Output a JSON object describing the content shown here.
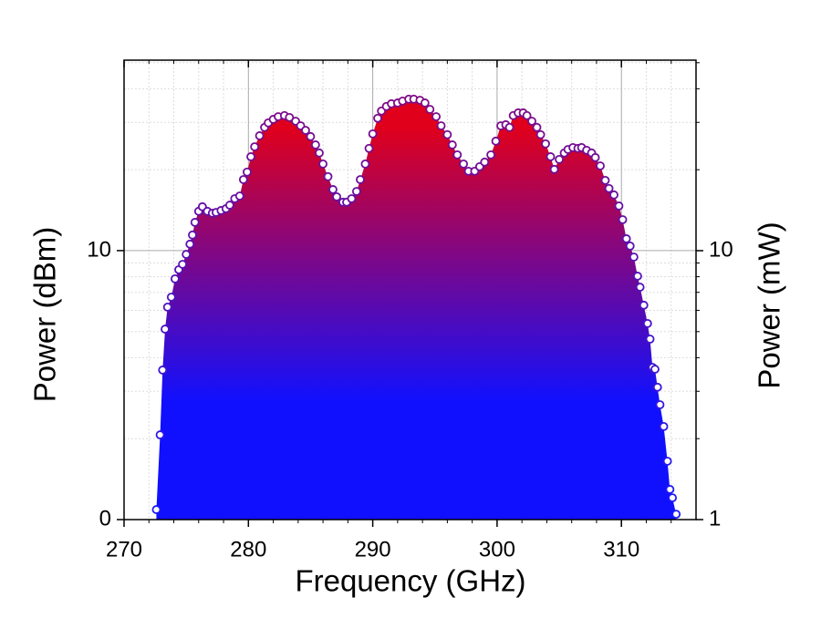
{
  "chart_data": {
    "type": "scatter-area",
    "x_label": "Frequency (GHz)",
    "y_label": "Power (dBm)",
    "y2_label": "Power (mW)",
    "xlim": [
      270,
      316
    ],
    "xticks": [
      270,
      280,
      290,
      300,
      310
    ],
    "xminorticks": [
      272,
      274,
      276,
      278,
      282,
      284,
      286,
      288,
      292,
      294,
      296,
      298,
      302,
      304,
      306,
      308,
      312,
      314
    ],
    "ylim": [
      0,
      17.08
    ],
    "yticks": [
      0,
      10
    ],
    "y2lim": [
      1,
      51.1
    ],
    "y2log": true,
    "y2ticks": [
      1,
      10
    ],
    "y2minorticks": [
      2,
      3,
      4,
      5,
      6,
      7,
      8,
      9,
      20,
      30,
      40,
      50
    ],
    "grid": true,
    "fill_gradient": [
      "#1010ff",
      "#e0001c"
    ],
    "marker_edge_colors": [
      "#1a1aff",
      "#8a0a7a"
    ],
    "series": [
      {
        "x": [
          272.6,
          272.9,
          273.1,
          273.3,
          273.5,
          273.8,
          274.1,
          274.4,
          274.7,
          275.0,
          275.3,
          275.5,
          275.7,
          276.0,
          276.3,
          276.7,
          277.1,
          277.4,
          277.8,
          278.2,
          278.5,
          278.9,
          279.3,
          279.6,
          279.9,
          280.2,
          280.5,
          280.9,
          281.3,
          281.6,
          282.0,
          282.4,
          282.9,
          283.3,
          283.8,
          284.2,
          284.6,
          285.0,
          285.4,
          285.7,
          286.0,
          286.4,
          286.8,
          287.1,
          287.6,
          287.9,
          288.3,
          288.7,
          289.0,
          289.4,
          289.7,
          290.0,
          290.4,
          290.7,
          291.1,
          291.5,
          292.0,
          292.4,
          292.9,
          293.3,
          293.8,
          294.2,
          294.6,
          295.1,
          295.5,
          296.0,
          296.4,
          296.8,
          297.3,
          297.7,
          298.2,
          298.6,
          299.0,
          299.5,
          299.9,
          300.3,
          300.7,
          301.0,
          301.3,
          301.7,
          302.1,
          302.4,
          302.8,
          303.2,
          303.5,
          303.9,
          304.3,
          304.6,
          305.0,
          305.4,
          305.7,
          306.1,
          306.5,
          306.8,
          307.2,
          307.6,
          307.9,
          308.3,
          308.7,
          309.0,
          309.4,
          309.8,
          310.1,
          310.4,
          310.7,
          311.0,
          311.3,
          311.5,
          311.8,
          312.1,
          312.3,
          312.5,
          312.7,
          312.9,
          313.1,
          313.4,
          313.7,
          313.9,
          314.1,
          314.4
        ],
        "values": [
          0.37,
          3.15,
          5.56,
          7.08,
          7.9,
          8.27,
          8.95,
          9.29,
          9.49,
          9.86,
          10.24,
          10.58,
          11.05,
          11.46,
          11.63,
          11.46,
          11.39,
          11.42,
          11.49,
          11.56,
          11.69,
          11.93,
          12.03,
          12.64,
          12.92,
          13.49,
          13.86,
          14.27,
          14.58,
          14.75,
          14.88,
          14.98,
          15.02,
          14.95,
          14.81,
          14.64,
          14.47,
          14.24,
          13.93,
          13.63,
          13.22,
          12.75,
          12.27,
          12.0,
          11.8,
          11.8,
          11.93,
          12.2,
          12.64,
          13.22,
          13.8,
          14.34,
          14.92,
          15.19,
          15.36,
          15.46,
          15.49,
          15.56,
          15.63,
          15.63,
          15.59,
          15.49,
          15.25,
          14.98,
          14.64,
          14.31,
          13.93,
          13.56,
          13.22,
          12.95,
          12.95,
          13.12,
          13.29,
          13.56,
          14.07,
          14.64,
          14.68,
          14.58,
          15.02,
          15.12,
          15.12,
          15.02,
          14.81,
          14.58,
          14.31,
          13.97,
          13.49,
          13.02,
          13.39,
          13.63,
          13.76,
          13.83,
          13.8,
          13.83,
          13.73,
          13.63,
          13.46,
          13.15,
          12.61,
          12.31,
          12.07,
          11.66,
          11.15,
          10.44,
          10.17,
          9.76,
          9.05,
          8.64,
          7.97,
          7.29,
          6.71,
          5.66,
          5.59,
          4.92,
          4.27,
          3.46,
          2.17,
          1.12,
          0.81,
          0.2
        ]
      }
    ]
  }
}
